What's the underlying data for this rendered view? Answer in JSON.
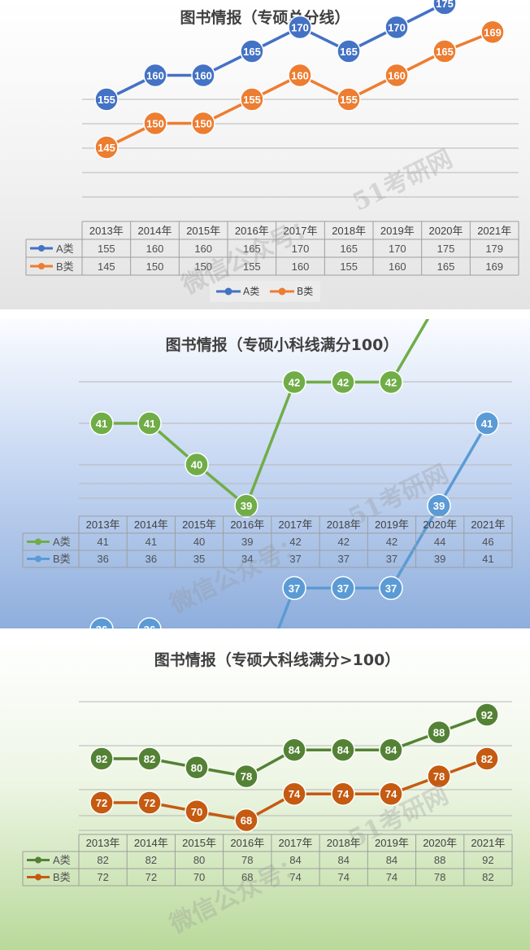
{
  "chart_data": [
    {
      "type": "line",
      "title": "图书情报（专硕总分线）",
      "categories": [
        "2013年",
        "2014年",
        "2015年",
        "2016年",
        "2017年",
        "2018年",
        "2019年",
        "2020年",
        "2021年"
      ],
      "series": [
        {
          "name": "A类",
          "color": "#4472c4",
          "values": [
            155,
            160,
            160,
            165,
            170,
            165,
            170,
            175,
            179
          ]
        },
        {
          "name": "B类",
          "color": "#ed7d31",
          "values": [
            145,
            150,
            150,
            155,
            160,
            155,
            160,
            165,
            169
          ]
        }
      ],
      "ylim": [
        130,
        180
      ],
      "grid": true,
      "data_table": true,
      "legend": "bottom"
    },
    {
      "type": "line",
      "title": "图书情报（专硕小科线满分100）",
      "categories": [
        "2013年",
        "2014年",
        "2015年",
        "2016年",
        "2017年",
        "2018年",
        "2019年",
        "2020年",
        "2021年"
      ],
      "series": [
        {
          "name": "A类",
          "color": "#70ad47",
          "values": [
            41,
            41,
            40,
            39,
            42,
            42,
            42,
            44,
            46
          ]
        },
        {
          "name": "B类",
          "color": "#5b9bd5",
          "values": [
            36,
            36,
            35,
            34,
            37,
            37,
            37,
            39,
            41
          ]
        }
      ],
      "ylim": [
        30,
        48
      ],
      "grid": true,
      "data_table": true,
      "legend": "table"
    },
    {
      "type": "line",
      "title": "图书情报（专硕大科线满分>100）",
      "categories": [
        "2013年",
        "2014年",
        "2015年",
        "2016年",
        "2017年",
        "2018年",
        "2019年",
        "2020年",
        "2021年"
      ],
      "series": [
        {
          "name": "A类",
          "color": "#548235",
          "values": [
            82,
            82,
            80,
            78,
            84,
            84,
            84,
            88,
            92
          ]
        },
        {
          "name": "B类",
          "color": "#c55a11",
          "values": [
            72,
            72,
            70,
            68,
            74,
            74,
            74,
            78,
            82
          ]
        }
      ],
      "ylim": [
        60,
        96
      ],
      "grid": true,
      "data_table": true,
      "legend": "table"
    }
  ],
  "watermark": {
    "account": "微信公众号：",
    "brand": "51考研网"
  }
}
